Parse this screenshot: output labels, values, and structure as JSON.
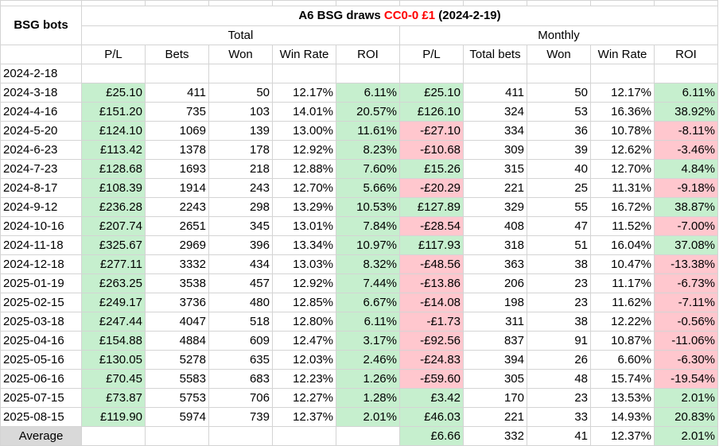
{
  "title": {
    "prefix": "A6 BSG draws ",
    "highlight": "CC0-0 £1",
    "suffix": " (2024-2-19)"
  },
  "row_header": "BSG bots",
  "group_total": "Total",
  "group_monthly": "Monthly",
  "columns_total": [
    "P/L",
    "Bets",
    "Won",
    "Win Rate",
    "ROI"
  ],
  "columns_monthly": [
    "P/L",
    "Total bets",
    "Won",
    "Win Rate",
    "ROI"
  ],
  "rows": [
    {
      "date": "2024-2-18",
      "t": [
        "",
        "",
        "",
        "",
        ""
      ],
      "m": [
        "",
        "",
        "",
        "",
        ""
      ],
      "ts": [
        "",
        "",
        "",
        "",
        ""
      ],
      "ms": [
        "",
        "",
        "",
        "",
        ""
      ]
    },
    {
      "date": "2024-3-18",
      "t": [
        "£25.10",
        "411",
        "50",
        "12.17%",
        "6.11%"
      ],
      "m": [
        "£25.10",
        "411",
        "50",
        "12.17%",
        "6.11%"
      ],
      "ts": [
        "pos",
        "",
        "",
        "",
        "pos"
      ],
      "ms": [
        "pos",
        "",
        "",
        "",
        "pos"
      ]
    },
    {
      "date": "2024-4-16",
      "t": [
        "£151.20",
        "735",
        "103",
        "14.01%",
        "20.57%"
      ],
      "m": [
        "£126.10",
        "324",
        "53",
        "16.36%",
        "38.92%"
      ],
      "ts": [
        "pos",
        "",
        "",
        "",
        "pos"
      ],
      "ms": [
        "pos",
        "",
        "",
        "",
        "pos"
      ]
    },
    {
      "date": "2024-5-20",
      "t": [
        "£124.10",
        "1069",
        "139",
        "13.00%",
        "11.61%"
      ],
      "m": [
        "-£27.10",
        "334",
        "36",
        "10.78%",
        "-8.11%"
      ],
      "ts": [
        "pos",
        "",
        "",
        "",
        "pos"
      ],
      "ms": [
        "neg",
        "",
        "",
        "",
        "neg"
      ]
    },
    {
      "date": "2024-6-23",
      "t": [
        "£113.42",
        "1378",
        "178",
        "12.92%",
        "8.23%"
      ],
      "m": [
        "-£10.68",
        "309",
        "39",
        "12.62%",
        "-3.46%"
      ],
      "ts": [
        "pos",
        "",
        "",
        "",
        "pos"
      ],
      "ms": [
        "neg",
        "",
        "",
        "",
        "neg"
      ]
    },
    {
      "date": "2024-7-23",
      "t": [
        "£128.68",
        "1693",
        "218",
        "12.88%",
        "7.60%"
      ],
      "m": [
        "£15.26",
        "315",
        "40",
        "12.70%",
        "4.84%"
      ],
      "ts": [
        "pos",
        "",
        "",
        "",
        "pos"
      ],
      "ms": [
        "pos",
        "",
        "",
        "",
        "pos"
      ]
    },
    {
      "date": "2024-8-17",
      "t": [
        "£108.39",
        "1914",
        "243",
        "12.70%",
        "5.66%"
      ],
      "m": [
        "-£20.29",
        "221",
        "25",
        "11.31%",
        "-9.18%"
      ],
      "ts": [
        "pos",
        "",
        "",
        "",
        "pos"
      ],
      "ms": [
        "neg",
        "",
        "",
        "",
        "neg"
      ]
    },
    {
      "date": "2024-9-12",
      "t": [
        "£236.28",
        "2243",
        "298",
        "13.29%",
        "10.53%"
      ],
      "m": [
        "£127.89",
        "329",
        "55",
        "16.72%",
        "38.87%"
      ],
      "ts": [
        "pos",
        "",
        "",
        "",
        "pos"
      ],
      "ms": [
        "pos",
        "",
        "",
        "",
        "pos"
      ]
    },
    {
      "date": "2024-10-16",
      "t": [
        "£207.74",
        "2651",
        "345",
        "13.01%",
        "7.84%"
      ],
      "m": [
        "-£28.54",
        "408",
        "47",
        "11.52%",
        "-7.00%"
      ],
      "ts": [
        "pos",
        "",
        "",
        "",
        "pos"
      ],
      "ms": [
        "neg",
        "",
        "",
        "",
        "neg"
      ]
    },
    {
      "date": "2024-11-18",
      "t": [
        "£325.67",
        "2969",
        "396",
        "13.34%",
        "10.97%"
      ],
      "m": [
        "£117.93",
        "318",
        "51",
        "16.04%",
        "37.08%"
      ],
      "ts": [
        "pos",
        "",
        "",
        "",
        "pos"
      ],
      "ms": [
        "pos",
        "",
        "",
        "",
        "pos"
      ]
    },
    {
      "date": "2024-12-18",
      "t": [
        "£277.11",
        "3332",
        "434",
        "13.03%",
        "8.32%"
      ],
      "m": [
        "-£48.56",
        "363",
        "38",
        "10.47%",
        "-13.38%"
      ],
      "ts": [
        "pos",
        "",
        "",
        "",
        "pos"
      ],
      "ms": [
        "neg",
        "",
        "",
        "",
        "neg"
      ]
    },
    {
      "date": "2025-01-19",
      "t": [
        "£263.25",
        "3538",
        "457",
        "12.92%",
        "7.44%"
      ],
      "m": [
        "-£13.86",
        "206",
        "23",
        "11.17%",
        "-6.73%"
      ],
      "ts": [
        "pos",
        "",
        "",
        "",
        "pos"
      ],
      "ms": [
        "neg",
        "",
        "",
        "",
        "neg"
      ]
    },
    {
      "date": "2025-02-15",
      "t": [
        "£249.17",
        "3736",
        "480",
        "12.85%",
        "6.67%"
      ],
      "m": [
        "-£14.08",
        "198",
        "23",
        "11.62%",
        "-7.11%"
      ],
      "ts": [
        "pos",
        "",
        "",
        "",
        "pos"
      ],
      "ms": [
        "neg",
        "",
        "",
        "",
        "neg"
      ]
    },
    {
      "date": "2025-03-18",
      "t": [
        "£247.44",
        "4047",
        "518",
        "12.80%",
        "6.11%"
      ],
      "m": [
        "-£1.73",
        "311",
        "38",
        "12.22%",
        "-0.56%"
      ],
      "ts": [
        "pos",
        "",
        "",
        "",
        "pos"
      ],
      "ms": [
        "neg",
        "",
        "",
        "",
        "neg"
      ]
    },
    {
      "date": "2025-04-16",
      "t": [
        "£154.88",
        "4884",
        "609",
        "12.47%",
        "3.17%"
      ],
      "m": [
        "-£92.56",
        "837",
        "91",
        "10.87%",
        "-11.06%"
      ],
      "ts": [
        "pos",
        "",
        "",
        "",
        "pos"
      ],
      "ms": [
        "neg",
        "",
        "",
        "",
        "neg"
      ]
    },
    {
      "date": "2025-05-16",
      "t": [
        "£130.05",
        "5278",
        "635",
        "12.03%",
        "2.46%"
      ],
      "m": [
        "-£24.83",
        "394",
        "26",
        "6.60%",
        "-6.30%"
      ],
      "ts": [
        "pos",
        "",
        "",
        "",
        "pos"
      ],
      "ms": [
        "neg",
        "",
        "",
        "",
        "neg"
      ]
    },
    {
      "date": "2025-06-16",
      "t": [
        "£70.45",
        "5583",
        "683",
        "12.23%",
        "1.26%"
      ],
      "m": [
        "-£59.60",
        "305",
        "48",
        "15.74%",
        "-19.54%"
      ],
      "ts": [
        "pos",
        "",
        "",
        "",
        "pos"
      ],
      "ms": [
        "neg",
        "",
        "",
        "",
        "neg"
      ]
    },
    {
      "date": "2025-07-15",
      "t": [
        "£73.87",
        "5753",
        "706",
        "12.27%",
        "1.28%"
      ],
      "m": [
        "£3.42",
        "170",
        "23",
        "13.53%",
        "2.01%"
      ],
      "ts": [
        "pos",
        "",
        "",
        "",
        "pos"
      ],
      "ms": [
        "pos",
        "",
        "",
        "",
        "pos"
      ]
    },
    {
      "date": "2025-08-15",
      "t": [
        "£119.90",
        "5974",
        "739",
        "12.37%",
        "2.01%"
      ],
      "m": [
        "£46.03",
        "221",
        "33",
        "14.93%",
        "20.83%"
      ],
      "ts": [
        "pos",
        "",
        "",
        "",
        "pos"
      ],
      "ms": [
        "pos",
        "",
        "",
        "",
        "pos"
      ]
    }
  ],
  "average": {
    "label": "Average",
    "m": [
      "£6.66",
      "332",
      "41",
      "12.37%",
      "2.01%"
    ],
    "ms": [
      "pos",
      "",
      "",
      "",
      "pos"
    ]
  },
  "colors": {
    "positive_fill": "#c6efce",
    "negative_fill": "#ffc7ce",
    "average_fill": "#d9d9d9",
    "title_highlight": "#ff0000",
    "gridline": "#d4d4d4"
  }
}
